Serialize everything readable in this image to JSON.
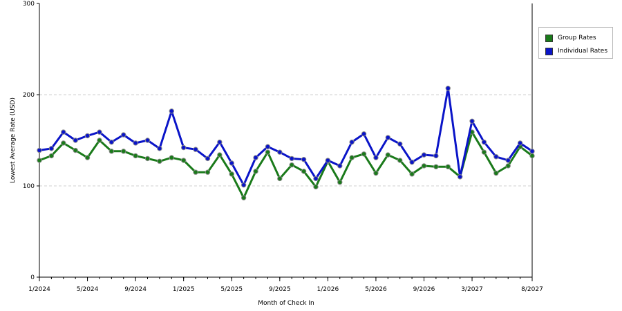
{
  "chart_data": {
    "type": "line",
    "xlabel": "Month of Check In",
    "ylabel": "Lowest Average Rate (USD)",
    "ylim": [
      0,
      300
    ],
    "yticks": [
      0,
      100,
      200,
      300
    ],
    "xticks": [
      {
        "index": 0,
        "label": "1/2024"
      },
      {
        "index": 4,
        "label": "5/2024"
      },
      {
        "index": 8,
        "label": "9/2024"
      },
      {
        "index": 12,
        "label": "1/2025"
      },
      {
        "index": 16,
        "label": "5/2025"
      },
      {
        "index": 20,
        "label": "9/2025"
      },
      {
        "index": 24,
        "label": "1/2026"
      },
      {
        "index": 28,
        "label": "5/2026"
      },
      {
        "index": 32,
        "label": "9/2026"
      },
      {
        "index": 36,
        "label": "3/2027"
      },
      {
        "index": 41,
        "label": "8/2027"
      }
    ],
    "grid": true,
    "legend_position": "right",
    "series": [
      {
        "name": "Group Rates",
        "color": "#1a7a1a",
        "values": [
          128,
          133,
          147,
          139,
          131,
          150,
          138,
          138,
          133,
          130,
          127,
          131,
          128,
          115,
          115,
          134,
          113,
          87,
          116,
          137,
          108,
          123,
          116,
          99,
          127,
          104,
          131,
          135,
          114,
          134,
          128,
          113,
          122,
          121,
          121,
          110,
          159,
          137,
          114,
          122,
          143,
          133
        ]
      },
      {
        "name": "Individual Rates",
        "color": "#0a14c8",
        "values": [
          139,
          141,
          159,
          150,
          155,
          159,
          148,
          156,
          147,
          150,
          141,
          182,
          142,
          140,
          130,
          148,
          125,
          101,
          131,
          143,
          137,
          130,
          129,
          108,
          128,
          122,
          148,
          157,
          131,
          153,
          146,
          126,
          134,
          133,
          207,
          110,
          171,
          148,
          132,
          128,
          147,
          138
        ]
      }
    ]
  }
}
